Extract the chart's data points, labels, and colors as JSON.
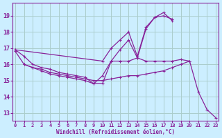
{
  "background_color": "#cceeff",
  "grid_color": "#aacccc",
  "line_color": "#882299",
  "xlabel": "Windchill (Refroidissement éolien,°C)",
  "xlim": [
    -0.3,
    23.3
  ],
  "ylim": [
    12.5,
    19.8
  ],
  "yticks": [
    13,
    14,
    15,
    16,
    17,
    18,
    19
  ],
  "xticks": [
    0,
    1,
    2,
    3,
    4,
    5,
    6,
    7,
    8,
    9,
    10,
    11,
    12,
    13,
    14,
    15,
    16,
    17,
    18,
    19,
    20,
    21,
    22,
    23
  ],
  "series": [
    {
      "x": [
        0,
        10,
        11,
        12,
        13,
        14,
        15,
        16,
        17,
        18
      ],
      "y": [
        16.9,
        16.2,
        17.0,
        17.5,
        18.0,
        16.5,
        18.3,
        18.9,
        19.0,
        18.8
      ]
    },
    {
      "x": [
        1,
        2,
        3,
        4,
        5,
        6,
        7,
        8,
        9,
        10,
        11,
        12,
        13,
        14,
        15,
        16,
        17,
        18
      ],
      "y": [
        16.0,
        15.8,
        15.6,
        15.4,
        15.3,
        15.2,
        15.1,
        15.0,
        14.8,
        15.3,
        16.2,
        16.9,
        17.5,
        16.4,
        18.2,
        18.9,
        19.2,
        18.7
      ]
    },
    {
      "x": [
        0,
        1,
        2,
        3,
        4,
        5,
        6,
        7,
        8,
        9,
        10,
        11,
        12,
        13,
        14,
        15,
        16,
        17,
        18,
        19,
        20,
        21,
        22,
        23
      ],
      "y": [
        16.9,
        16.5,
        16.0,
        15.8,
        15.7,
        15.5,
        15.4,
        15.3,
        15.2,
        14.8,
        14.8,
        16.2,
        16.2,
        16.2,
        16.4,
        16.2,
        16.2,
        16.2,
        16.2,
        16.3,
        16.2,
        14.3,
        13.2,
        12.7
      ]
    },
    {
      "x": [
        0,
        1,
        2,
        3,
        4,
        5,
        6,
        7,
        8,
        9,
        10,
        11,
        12,
        13,
        14,
        15,
        16,
        17,
        18,
        19,
        20
      ],
      "y": [
        16.8,
        16.0,
        15.8,
        15.7,
        15.5,
        15.4,
        15.3,
        15.2,
        15.1,
        15.0,
        15.0,
        15.1,
        15.2,
        15.3,
        15.3,
        15.4,
        15.5,
        15.6,
        15.8,
        16.0,
        16.2
      ]
    }
  ]
}
